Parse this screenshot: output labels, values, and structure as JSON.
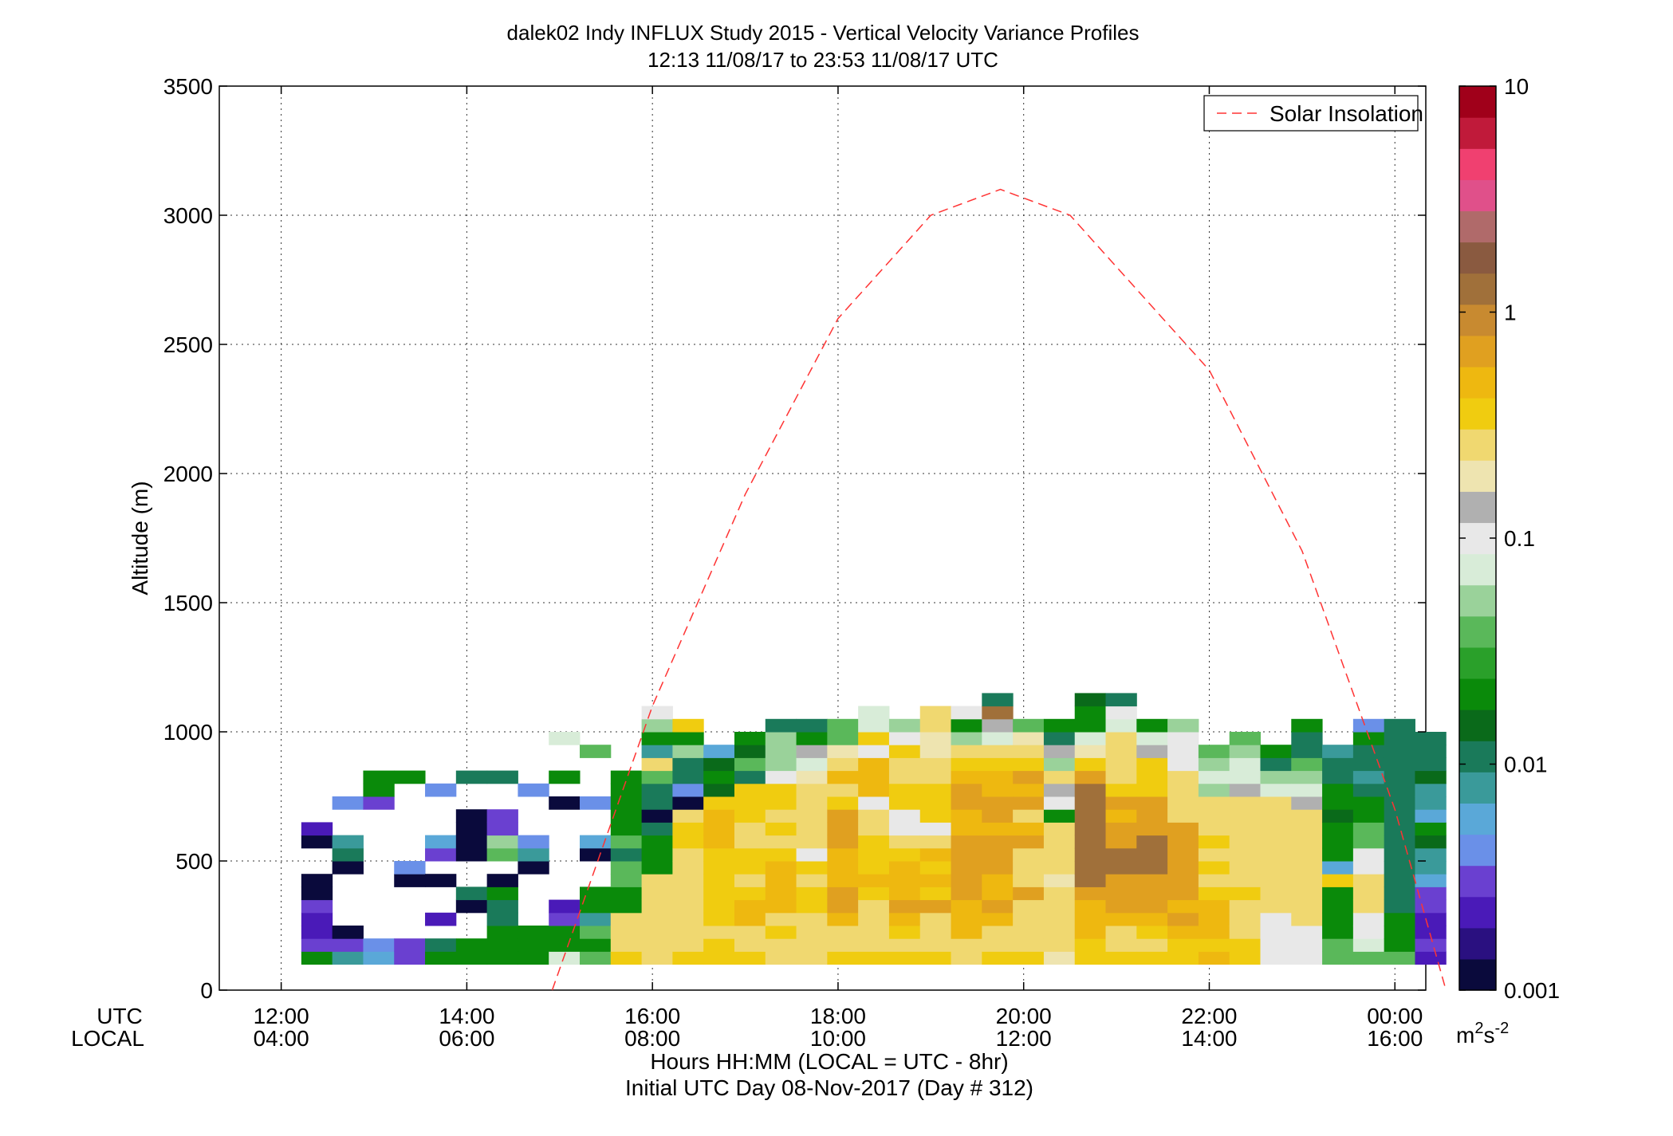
{
  "title_line1": "dalek02 Indy INFLUX Study 2015 - Vertical Velocity Variance Profiles",
  "title_line2": "12:13 11/08/17 to 23:53 11/08/17  UTC",
  "axes": {
    "y_label": "Altitude (m)",
    "x_label_line1": "Hours HH:MM  (LOCAL = UTC - 8hr)",
    "x_label_line2": "Initial UTC Day 08-Nov-2017 (Day # 312)",
    "row_label_utc": "UTC",
    "row_label_local": "LOCAL",
    "colorbar_unit_base": "m",
    "colorbar_unit_exp1": "2",
    "colorbar_unit_mid": "s",
    "colorbar_unit_exp2": "-2"
  },
  "legend": {
    "label": "Solar Insolation",
    "position": "top-right"
  },
  "colors": {
    "solar_line": "#ff3333",
    "colormap": [
      "#0a0a3c",
      "#2a1080",
      "#4a1ab8",
      "#6a40d0",
      "#6a90e8",
      "#5aa8d8",
      "#3a9a9a",
      "#1a7a5a",
      "#0a6a1a",
      "#0a8a0a",
      "#2aa02a",
      "#5ab85a",
      "#9ad29a",
      "#d8ecd8",
      "#e8e8e8",
      "#b0b0b0",
      "#eee4b0",
      "#f0d870",
      "#f0cc10",
      "#eeb810",
      "#e0a020",
      "#c88a30",
      "#a0703a",
      "#8a5a40",
      "#b06a6a",
      "#e0508a",
      "#f04070",
      "#c01a3a",
      "#a0001a"
    ]
  },
  "chart_data": {
    "type": "heatmap",
    "title": "dalek02 Indy INFLUX Study 2015 - Vertical Velocity Variance Profiles",
    "subtitle": "12:13 11/08/17 to 23:53 11/08/17  UTC",
    "xlabel": "Hours HH:MM  (LOCAL = UTC - 8hr)",
    "ylabel": "Altitude (m)",
    "xlim_utc_hours": [
      11.333,
      24.333
    ],
    "ylim": [
      0,
      3500
    ],
    "x_ticks_utc": [
      "12:00",
      "14:00",
      "16:00",
      "18:00",
      "20:00",
      "22:00",
      "00:00"
    ],
    "x_ticks_local": [
      "04:00",
      "06:00",
      "08:00",
      "10:00",
      "12:00",
      "14:00",
      "16:00"
    ],
    "y_ticks": [
      "0",
      "500",
      "1000",
      "1500",
      "2000",
      "2500",
      "3000",
      "3500"
    ],
    "y_tick_values": [
      0,
      500,
      1000,
      1500,
      2000,
      2500,
      3000,
      3500
    ],
    "grid": true,
    "colorbar": {
      "scale": "log",
      "range": [
        0.001,
        10
      ],
      "tick_labels": [
        "10",
        "1",
        "0.1",
        "0.01",
        "0.001"
      ],
      "tick_values": [
        10,
        1,
        0.1,
        0.01,
        0.001
      ],
      "unit": "m^2 s^-2"
    },
    "time_start_utc_hours": 12.2167,
    "time_step_minutes": 20,
    "alt_start_m": 100,
    "alt_step_m": 50,
    "legend": [
      "Solar Insolation"
    ],
    "solar_insolation_curve": {
      "x_utc_hours": [
        14.92,
        16.0,
        17.0,
        18.0,
        19.0,
        19.75,
        20.5,
        21.5,
        22.0,
        23.0,
        24.0,
        24.55
      ],
      "y_m": [
        0,
        1100,
        1920,
        2600,
        3000,
        3100,
        3000,
        2600,
        2400,
        1700,
        700,
        0
      ]
    },
    "cell_value_codes_note": "",
    "code_values": {
      "a": 0.0012,
      "b": 0.002,
      "c": 0.003,
      "d": 0.004,
      "e": 0.0055,
      "f": 0.0065,
      "g": 0.0075,
      "h": 0.0085,
      "i": 0.01,
      "j": 0.013,
      "k": 0.022,
      "l": 0.035,
      "m": 0.055,
      "n": 0.08,
      "o": 0.105,
      "p": 0.11,
      "q": 0.13,
      "r": 0.18,
      "s": 0.23,
      "t": 0.32,
      "u": 0.45,
      "v": 0.65,
      "w": 0.9,
      "x": 1.3
    },
    "columns": [
      "kcbbcaa--ab.......",
      "gca....aig..d.....",
      "ed..........ckk...",
      "cc....ad......k...",
      "ki.b..a.ce...d....",
      "kk..ai..aaaa..i...",
      "kkkiika.lmcc..i...",
      "kkk...-ahd...d....",
      "nkkcb.......a.k..n",
      "lklgkk..af..d...l",
      "tssskkllilkkkkk",
      "ssssssskkkiaiilsgkmp",
      "tssssssssttsadiimkt",
      "ttsttttttuuutjkjf",
      "tssuutsttsstttiljk",
      "sstsuuuutststtpmmmi",
      "ssssttstpsssssrnqki",
      "tssuvvuuuvvvtsusrll",
      "tsssstutttsspuuuptnn",
      "tstuvuuutsppttsstom",
      "tsssvtutusptttssrrss",
      "ssuuuvvvvvuuvvutsmkp",
      "tssuvuuvvvuvvuutsnqxi",
      "tssssvsssvusvuvtsrl",
      "rsssssrsssskoqsmqik",
      "ttuuuvxxxxxxxxvtrnkkj",
      "tssuvvvxxvvuvtssssnoi",
      "tstuvvvxxxvvvtttqnk",
      "ttuvuvvvvvvssssopom",
      "utuuutststsssmnml",
      "ttssstsssssssqnnml",
      "poopsssssssssnmik",
      "oposssssssssqnmliik",
      "llkkkktfkkkjkkiih",
      "lnopsssppllkkigiikd",
      "lkkkiiiiiiiiiiiiiii",
      "bcbbccehhjkfhhjiii"
    ]
  }
}
